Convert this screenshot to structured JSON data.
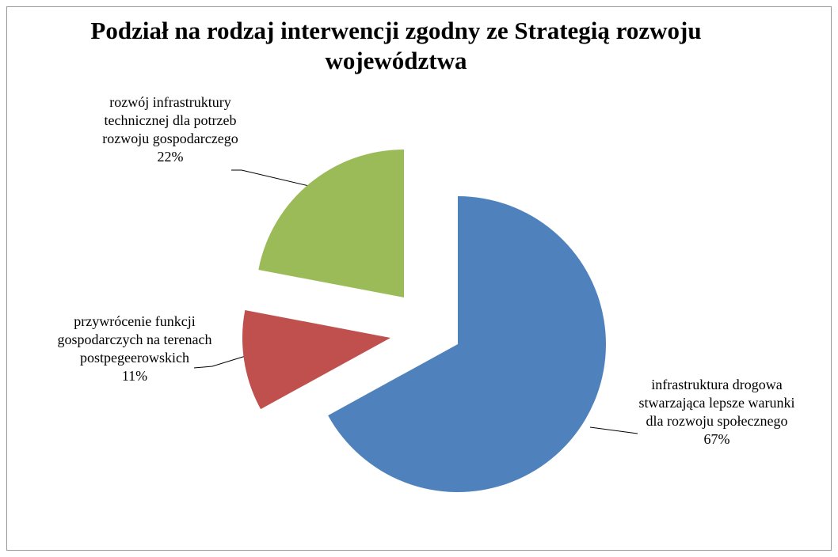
{
  "chart_data": {
    "type": "pie",
    "title": "Podział na rodzaj interwencji zgodny ze Strategią rozwoju województwa",
    "categories": [
      "infrastruktura drogowa stwarzająca lepsze warunki dla rozwoju społecznego",
      "przywrócenie funkcji gospodarczych na terenach postpegeerowskich",
      "rozwój infrastruktury technicznej dla potrzeb rozwoju gospodarczego"
    ],
    "values": [
      67,
      11,
      22
    ],
    "value_labels": [
      "67%",
      "11%",
      "22%"
    ],
    "colors": [
      "#4f81bd",
      "#c0504d",
      "#9bbb59"
    ]
  }
}
